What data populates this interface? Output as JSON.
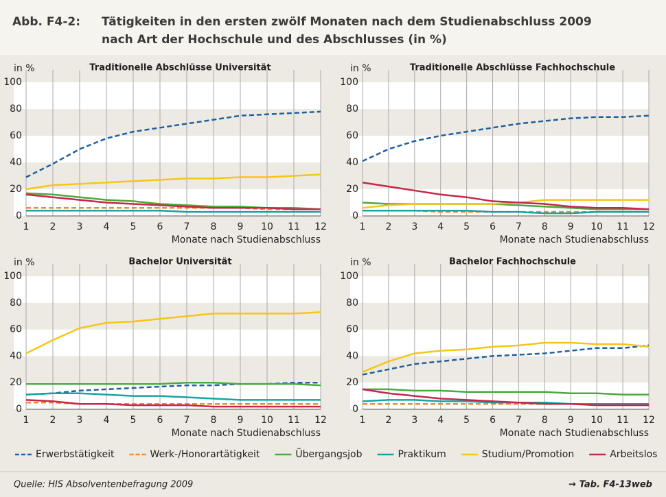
{
  "header": {
    "label": "Abb. F4-2:",
    "title": [
      "Tätigkeiten in den ersten zwölf Monaten nach dem Studienabschluss 2009",
      "nach Art der Hochschule und des Abschlusses (in %)"
    ]
  },
  "chart_data": [
    {
      "type": "line",
      "title": "Traditionelle Abschlüsse Universität",
      "ylabel": "in %",
      "xlabel": "Monate nach Studienabschluss",
      "x": [
        1,
        2,
        3,
        4,
        5,
        6,
        7,
        8,
        9,
        10,
        11,
        12
      ],
      "xlim": [
        1,
        12
      ],
      "xticks": [
        1,
        2,
        3,
        4,
        5,
        6,
        7,
        8,
        9,
        10,
        11,
        12
      ],
      "ylim": [
        0,
        100
      ],
      "yticks": [
        0,
        20,
        40,
        60,
        80,
        100
      ],
      "grid": true,
      "series": [
        {
          "name": "Erwerbstätigkeit",
          "color": "#1f5fa0",
          "dashed": true,
          "values": [
            29,
            39,
            50,
            58,
            63,
            66,
            69,
            72,
            75,
            76,
            77,
            78
          ]
        },
        {
          "name": "Werk-/Honorartätigkeit",
          "color": "#f08a30",
          "dashed": true,
          "values": [
            6,
            6,
            6,
            6,
            6,
            6,
            6,
            6,
            6,
            5,
            5,
            5
          ]
        },
        {
          "name": "Übergangsjob",
          "color": "#4aaa3c",
          "dashed": false,
          "values": [
            17,
            16,
            14,
            12,
            11,
            9,
            8,
            7,
            7,
            6,
            6,
            5
          ]
        },
        {
          "name": "Praktikum",
          "color": "#17a3a3",
          "dashed": false,
          "values": [
            4,
            4,
            4,
            4,
            4,
            4,
            3,
            3,
            3,
            3,
            3,
            3
          ]
        },
        {
          "name": "Studium/Promotion",
          "color": "#f5c518",
          "dashed": false,
          "values": [
            20,
            23,
            24,
            25,
            26,
            27,
            28,
            28,
            29,
            29,
            30,
            31
          ]
        },
        {
          "name": "Arbeitslos",
          "color": "#c8254a",
          "dashed": false,
          "values": [
            16,
            14,
            12,
            10,
            9,
            8,
            7,
            6,
            6,
            6,
            5,
            5
          ]
        }
      ]
    },
    {
      "type": "line",
      "title": "Traditionelle Abschlüsse Fachhochschule",
      "ylabel": "in %",
      "xlabel": "Monate nach Studienabschluss",
      "x": [
        1,
        2,
        3,
        4,
        5,
        6,
        7,
        8,
        9,
        10,
        11,
        12
      ],
      "xlim": [
        1,
        12
      ],
      "xticks": [
        1,
        2,
        3,
        4,
        5,
        6,
        7,
        8,
        9,
        10,
        11,
        12
      ],
      "ylim": [
        0,
        100
      ],
      "yticks": [
        0,
        20,
        40,
        60,
        80,
        100
      ],
      "grid": true,
      "series": [
        {
          "name": "Erwerbstätigkeit",
          "color": "#1f5fa0",
          "dashed": true,
          "values": [
            41,
            50,
            56,
            60,
            63,
            66,
            69,
            71,
            73,
            74,
            74,
            75
          ]
        },
        {
          "name": "Werk-/Honorartätigkeit",
          "color": "#f08a30",
          "dashed": true,
          "values": [
            4,
            4,
            4,
            3,
            3,
            3,
            3,
            3,
            3,
            3,
            3,
            3
          ]
        },
        {
          "name": "Übergangsjob",
          "color": "#4aaa3c",
          "dashed": false,
          "values": [
            10,
            9,
            9,
            9,
            9,
            9,
            8,
            7,
            6,
            5,
            5,
            5
          ]
        },
        {
          "name": "Praktikum",
          "color": "#17a3a3",
          "dashed": false,
          "values": [
            4,
            4,
            4,
            4,
            4,
            3,
            3,
            2,
            2,
            3,
            3,
            3
          ]
        },
        {
          "name": "Studium/Promotion",
          "color": "#f5c518",
          "dashed": false,
          "values": [
            6,
            8,
            9,
            9,
            9,
            9,
            10,
            12,
            12,
            12,
            12,
            12
          ]
        },
        {
          "name": "Arbeitslos",
          "color": "#c8254a",
          "dashed": false,
          "values": [
            25,
            22,
            19,
            16,
            14,
            11,
            10,
            9,
            7,
            6,
            6,
            5
          ]
        }
      ]
    },
    {
      "type": "line",
      "title": "Bachelor Universität",
      "ylabel": "in %",
      "xlabel": "Monate nach Studienabschluss",
      "x": [
        1,
        2,
        3,
        4,
        5,
        6,
        7,
        8,
        9,
        10,
        11,
        12
      ],
      "xlim": [
        1,
        12
      ],
      "xticks": [
        1,
        2,
        3,
        4,
        5,
        6,
        7,
        8,
        9,
        10,
        11,
        12
      ],
      "ylim": [
        0,
        100
      ],
      "yticks": [
        0,
        20,
        40,
        60,
        80,
        100
      ],
      "grid": true,
      "series": [
        {
          "name": "Erwerbstätigkeit",
          "color": "#1f5fa0",
          "dashed": true,
          "values": [
            11,
            12,
            14,
            15,
            16,
            17,
            18,
            18,
            19,
            19,
            20,
            20
          ]
        },
        {
          "name": "Werk-/Honorartätigkeit",
          "color": "#f08a30",
          "dashed": true,
          "values": [
            5,
            5,
            4,
            4,
            4,
            4,
            4,
            4,
            4,
            4,
            4,
            4
          ]
        },
        {
          "name": "Übergangsjob",
          "color": "#4aaa3c",
          "dashed": false,
          "values": [
            19,
            19,
            19,
            19,
            19,
            19,
            20,
            20,
            19,
            19,
            19,
            18
          ]
        },
        {
          "name": "Praktikum",
          "color": "#17a3a3",
          "dashed": false,
          "values": [
            11,
            12,
            12,
            11,
            10,
            10,
            9,
            8,
            7,
            7,
            7,
            7
          ]
        },
        {
          "name": "Studium/Promotion",
          "color": "#f5c518",
          "dashed": false,
          "values": [
            42,
            52,
            61,
            65,
            66,
            68,
            70,
            72,
            72,
            72,
            72,
            73
          ]
        },
        {
          "name": "Arbeitslos",
          "color": "#c8254a",
          "dashed": false,
          "values": [
            7,
            6,
            4,
            4,
            3,
            3,
            3,
            2,
            2,
            2,
            2,
            2
          ]
        }
      ]
    },
    {
      "type": "line",
      "title": "Bachelor Fachhochschule",
      "ylabel": "in %",
      "xlabel": "Monate nach Studienabschluss",
      "x": [
        1,
        2,
        3,
        4,
        5,
        6,
        7,
        8,
        9,
        10,
        11,
        12
      ],
      "xlim": [
        1,
        12
      ],
      "xticks": [
        1,
        2,
        3,
        4,
        5,
        6,
        7,
        8,
        9,
        10,
        11,
        12
      ],
      "ylim": [
        0,
        100
      ],
      "yticks": [
        0,
        20,
        40,
        60,
        80,
        100
      ],
      "grid": true,
      "series": [
        {
          "name": "Erwerbstätigkeit",
          "color": "#1f5fa0",
          "dashed": true,
          "values": [
            26,
            30,
            34,
            36,
            38,
            40,
            41,
            42,
            44,
            46,
            46,
            48
          ]
        },
        {
          "name": "Werk-/Honorartätigkeit",
          "color": "#f08a30",
          "dashed": true,
          "values": [
            4,
            4,
            4,
            4,
            4,
            4,
            4,
            4,
            4,
            4,
            4,
            3
          ]
        },
        {
          "name": "Übergangsjob",
          "color": "#4aaa3c",
          "dashed": false,
          "values": [
            15,
            15,
            14,
            14,
            13,
            13,
            13,
            13,
            12,
            12,
            11,
            11
          ]
        },
        {
          "name": "Praktikum",
          "color": "#17a3a3",
          "dashed": false,
          "values": [
            6,
            7,
            7,
            6,
            6,
            5,
            5,
            5,
            4,
            4,
            4,
            4
          ]
        },
        {
          "name": "Studium/Promotion",
          "color": "#f5c518",
          "dashed": false,
          "values": [
            28,
            36,
            42,
            44,
            45,
            47,
            48,
            50,
            50,
            49,
            49,
            47
          ]
        },
        {
          "name": "Arbeitslos",
          "color": "#c8254a",
          "dashed": false,
          "values": [
            15,
            12,
            10,
            8,
            7,
            6,
            5,
            4,
            4,
            3,
            3,
            3
          ]
        }
      ]
    }
  ],
  "footer": {
    "source": "Quelle: HIS Absolventenbefragung 2009",
    "ref": "→ Tab. F4-13web"
  }
}
